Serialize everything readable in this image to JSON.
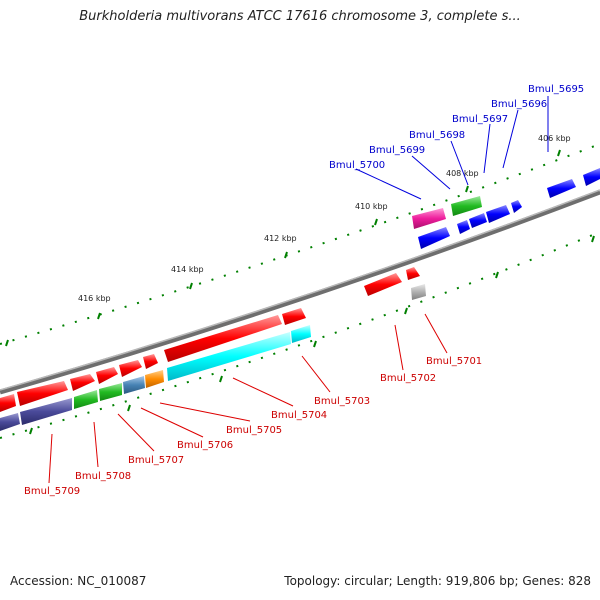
{
  "title": "Burkholderia multivorans ATCC 17616 chromosome 3, complete s...",
  "footer": {
    "accession": "Accession: NC_010087",
    "summary": "Topology: circular; Length: 919,806 bp; Genes: 828"
  },
  "kbp_ticks": [
    {
      "label": "406 kbp"
    },
    {
      "label": "408 kbp"
    },
    {
      "label": "410 kbp"
    },
    {
      "label": "412 kbp"
    },
    {
      "label": "414 kbp"
    },
    {
      "label": "416 kbp"
    }
  ],
  "top_gene_labels": [
    "Bmul_5695",
    "Bmul_5696",
    "Bmul_5697",
    "Bmul_5698",
    "Bmul_5699",
    "Bmul_5700"
  ],
  "bottom_gene_labels": [
    "Bmul_5701",
    "Bmul_5702",
    "Bmul_5703",
    "Bmul_5704",
    "Bmul_5705",
    "Bmul_5706",
    "Bmul_5707",
    "Bmul_5708",
    "Bmul_5709"
  ],
  "colors": {
    "label_top": "#0000cc",
    "label_bottom": "#cc0000",
    "leader_top": "#0000dd",
    "leader_bottom": "#dd0000",
    "backbone": "#808080",
    "tick": "#008000",
    "red": "#ff0000",
    "blue": "#0000ff",
    "green": "#22bb22",
    "magenta": "#ee1c9c",
    "cyan": "#00ffff",
    "purple": "#4a4a9a",
    "steelblue": "#4682b4",
    "orange": "#ff8c00",
    "gray": "#b0b0b0"
  }
}
